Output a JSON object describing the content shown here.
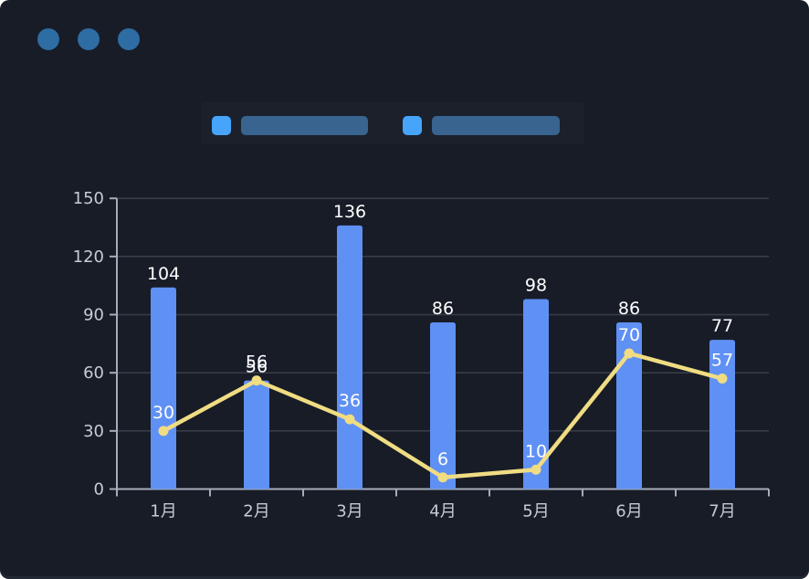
{
  "window": {
    "background": "#171C27",
    "dot_color": "#2E6CA4",
    "dots": [
      "window-dot",
      "window-dot",
      "window-dot"
    ]
  },
  "legend": {
    "items": [
      {
        "swatch_color": "#47A4FB",
        "bar_color": "#38648F"
      },
      {
        "swatch_color": "#47A4FB",
        "bar_color": "#38648F"
      }
    ]
  },
  "chart_data": {
    "type": "bar",
    "subtype": "bar-with-line-overlay",
    "title": "",
    "xlabel": "",
    "ylabel": "",
    "categories": [
      "1月",
      "2月",
      "3月",
      "4月",
      "5月",
      "6月",
      "7月"
    ],
    "series": [
      {
        "name": "bar-series",
        "type": "bar",
        "color": "#5F90F4",
        "values": [
          104,
          56,
          136,
          86,
          98,
          86,
          77
        ]
      },
      {
        "name": "line-series",
        "type": "line",
        "color": "#F0DC82",
        "values": [
          30,
          56,
          36,
          6,
          10,
          70,
          57
        ]
      }
    ],
    "ylim": [
      0,
      150
    ],
    "yticks": [
      0,
      30,
      60,
      90,
      120,
      150
    ],
    "grid": true,
    "legend_position": "top",
    "value_labels": true,
    "value_label_color": "#FFFFFF",
    "axis_label_color": "#C7CBD4",
    "gridline_color": "#373C46",
    "axis_line_color": "#A6ACB8"
  }
}
